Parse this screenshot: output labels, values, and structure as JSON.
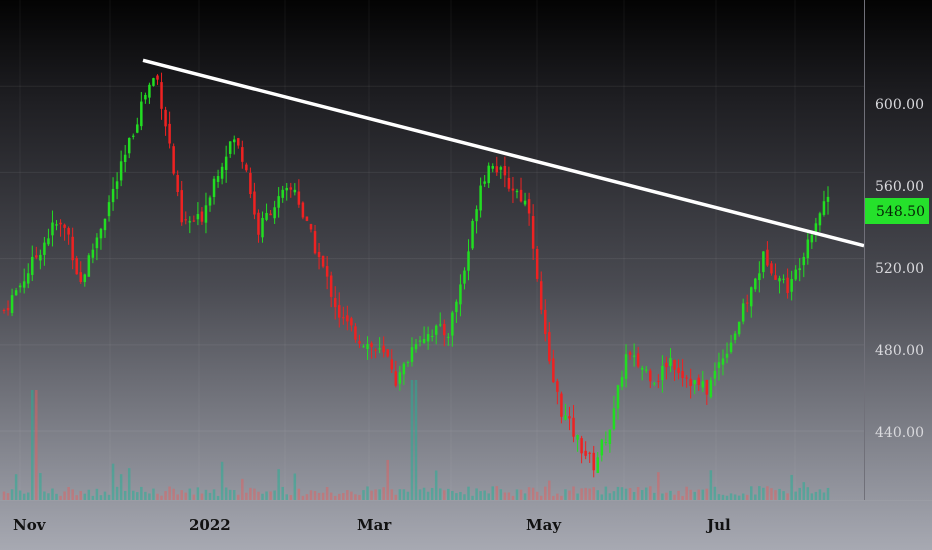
{
  "chart_data": {
    "type": "candlestick",
    "title": "",
    "xlabel": "",
    "ylabel": "",
    "ylim": [
      408,
      640
    ],
    "y_ticks": [
      "600.00",
      "560.00",
      "520.00",
      "480.00",
      "440.00"
    ],
    "x_ticks": [
      "Nov",
      "2022",
      "Mar",
      "May",
      "Jul"
    ],
    "last_price": "548.50",
    "grid": true,
    "colors": {
      "up": "#22dd22",
      "down": "#ee2222",
      "trendline": "#ffffff"
    },
    "trendline": {
      "from": 612,
      "to": 526
    },
    "candle_count": 205,
    "anchors": [
      [
        0,
        496
      ],
      [
        6,
        510
      ],
      [
        12,
        526
      ],
      [
        16,
        536
      ],
      [
        20,
        533
      ],
      [
        24,
        508
      ],
      [
        30,
        533
      ],
      [
        38,
        566
      ],
      [
        44,
        595
      ],
      [
        48,
        606
      ],
      [
        52,
        575
      ],
      [
        56,
        536
      ],
      [
        62,
        538
      ],
      [
        66,
        556
      ],
      [
        72,
        576
      ],
      [
        76,
        566
      ],
      [
        80,
        532
      ],
      [
        84,
        543
      ],
      [
        88,
        549
      ],
      [
        92,
        553
      ],
      [
        94,
        541
      ],
      [
        100,
        518
      ],
      [
        106,
        493
      ],
      [
        112,
        483
      ],
      [
        118,
        477
      ],
      [
        122,
        472
      ],
      [
        124,
        462
      ],
      [
        130,
        483
      ],
      [
        136,
        487
      ],
      [
        140,
        485
      ],
      [
        146,
        519
      ],
      [
        150,
        554
      ],
      [
        154,
        566
      ],
      [
        158,
        556
      ],
      [
        162,
        551
      ],
      [
        166,
        543
      ],
      [
        168,
        511
      ],
      [
        172,
        470
      ],
      [
        176,
        449
      ],
      [
        182,
        433
      ],
      [
        186,
        424
      ],
      [
        192,
        445
      ],
      [
        196,
        475
      ],
      [
        200,
        471
      ],
      [
        206,
        464
      ],
      [
        210,
        474
      ],
      [
        214,
        467
      ],
      [
        218,
        462
      ],
      [
        222,
        459
      ],
      [
        226,
        473
      ],
      [
        230,
        484
      ],
      [
        236,
        506
      ],
      [
        240,
        522
      ],
      [
        244,
        512
      ],
      [
        248,
        506
      ],
      [
        254,
        531
      ],
      [
        258,
        544
      ],
      [
        260,
        549
      ]
    ]
  }
}
